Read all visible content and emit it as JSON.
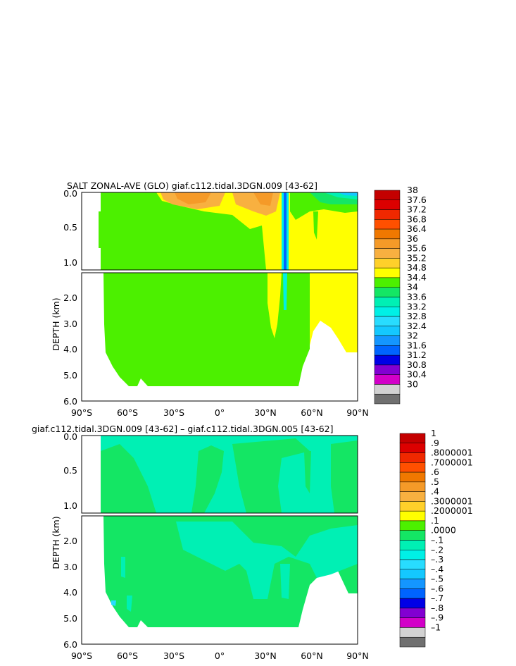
{
  "chart_data": [
    {
      "type": "heatmap",
      "title": "SALT ZONAL-AVE (GLO) giaf.c112.tidal.3DGN.009 [43-62]",
      "ylabel": "DEPTH (km)",
      "xlim": [
        -90,
        90
      ],
      "ylim": [
        6.0,
        0.0
      ],
      "x_ticks": [
        "90°S",
        "60°S",
        "30°S",
        "0°",
        "30°N",
        "60°N",
        "90°N"
      ],
      "y_ticks_upper": [
        "0.0",
        "0.5",
        "1.0"
      ],
      "y_ticks_lower": [
        "2.0",
        "3.0",
        "4.0",
        "5.0",
        "6.0"
      ],
      "colorbar": {
        "levels": [
          "38",
          "37.6",
          "37.2",
          "36.8",
          "36.4",
          "36",
          "35.6",
          "35.2",
          "34.8",
          "34.4",
          "34",
          "33.6",
          "33.2",
          "32.8",
          "32.4",
          "32",
          "31.6",
          "31.2",
          "30.8",
          "30.4",
          "30"
        ],
        "colors": [
          "#c40000",
          "#dc0000",
          "#f02800",
          "#ff5000",
          "#f07800",
          "#f59a28",
          "#f8b040",
          "#ffd02a",
          "#ffff00",
          "#4cf000",
          "#14e664",
          "#00f0b4",
          "#00f0e6",
          "#28dcff",
          "#14c8ff",
          "#1496ff",
          "#0064ff",
          "#0000e6",
          "#8200d2",
          "#d200c8",
          "#d2d2d2",
          "#707070"
        ]
      }
    },
    {
      "type": "heatmap",
      "title": "giaf.c112.tidal.3DGN.009 [43-62] – giaf.c112.tidal.3DGN.005 [43-62]",
      "ylabel": "DEPTH (km)",
      "xlim": [
        -90,
        90
      ],
      "ylim": [
        6.0,
        0.0
      ],
      "x_ticks": [
        "90°S",
        "60°S",
        "30°S",
        "0°",
        "30°N",
        "60°N",
        "90°N"
      ],
      "y_ticks_upper": [
        "0.0",
        "0.5",
        "1.0"
      ],
      "y_ticks_lower": [
        "2.0",
        "3.0",
        "4.0",
        "5.0",
        "6.0"
      ],
      "colorbar": {
        "levels": [
          "1",
          ".9",
          ".8000001",
          ".7000001",
          ".6",
          ".5",
          ".4",
          ".3000001",
          ".2000001",
          ".1",
          ".0000",
          "–.1",
          "–.2",
          "–.3",
          "–.4",
          "–.5",
          "–.6",
          "–.7",
          "–.8",
          "–.9",
          "–1"
        ],
        "colors": [
          "#c40000",
          "#dc0000",
          "#f02800",
          "#ff5000",
          "#f07800",
          "#f59a28",
          "#f8b040",
          "#ffd02a",
          "#ffff00",
          "#4cf000",
          "#14e664",
          "#00f0b4",
          "#00f0e6",
          "#28dcff",
          "#14c8ff",
          "#1496ff",
          "#0064ff",
          "#0000e6",
          "#8200d2",
          "#d200c8",
          "#d2d2d2",
          "#707070"
        ]
      }
    }
  ]
}
